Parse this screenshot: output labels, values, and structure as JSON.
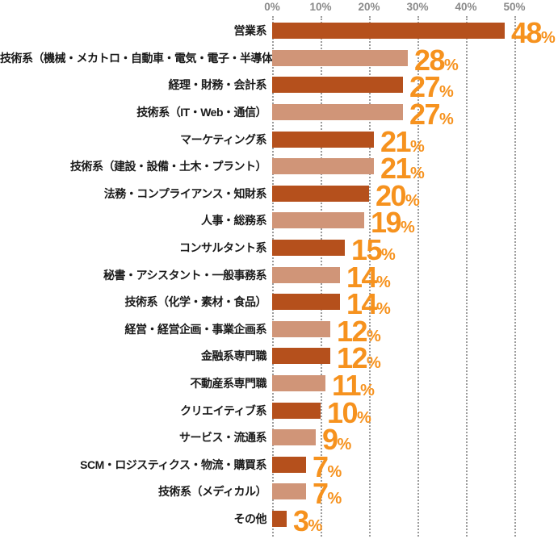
{
  "chart_data": {
    "type": "bar",
    "orientation": "horizontal",
    "title": "",
    "categories": [
      "営業系",
      "技術系（機械・メカトロ・自動車・電気・電子・半導体）",
      "経理・財務・会計系",
      "技術系（IT・Web・通信）",
      "マーケティング系",
      "技術系（建設・設備・土木・プラント）",
      "法務・コンプライアンス・知財系",
      "人事・総務系",
      "コンサルタント系",
      "秘書・アシスタント・一般事務系",
      "技術系（化学・素材・食品）",
      "経営・経営企画・事業企画系",
      "金融系専門職",
      "不動産系専門職",
      "クリエイティブ系",
      "サービス・流通系",
      "SCM・ロジスティクス・物流・購買系",
      "技術系（メディカル）",
      "その他"
    ],
    "values": [
      48,
      28,
      27,
      27,
      21,
      21,
      20,
      19,
      15,
      14,
      14,
      12,
      12,
      11,
      10,
      9,
      7,
      7,
      3
    ],
    "value_suffix": "%",
    "x_ticks": [
      "0%",
      "10%",
      "20%",
      "30%",
      "40%",
      "50%"
    ],
    "xlim": [
      0,
      50
    ],
    "tick_step": 10,
    "axis_position": "top",
    "grid": "vertical-dotted",
    "legend": "none",
    "bar_color_pattern": "alternating-dark-light",
    "colors": {
      "bar_dark": "#b5501c",
      "bar_light": "#d09578",
      "value_text": "#f6921e",
      "tick_text": "#8a8a8a",
      "label_text": "#1a1a1a",
      "gridline": "#9b9b9b",
      "background": "#ffffff"
    }
  }
}
